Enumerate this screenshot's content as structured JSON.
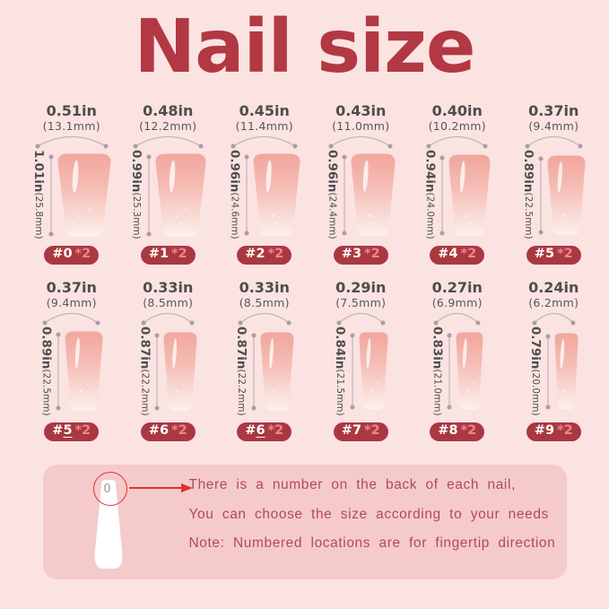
{
  "title": "Nail size",
  "colors": {
    "page_background": "#fbe3e2",
    "title_red": "#b23843",
    "badge_background": "#a93841",
    "badge_qty_pink": "#ee858c",
    "measure_text_gray": "#4d4d4d",
    "note_panel_background": "#f5caca",
    "note_text_rose": "#b04b57",
    "arrow_red": "#e03131",
    "nail_pink_top": "#f1a69d"
  },
  "sizes": [
    {
      "num_prefix": "#",
      "digit": "0",
      "underlined": false,
      "qty": "*2",
      "width_in": "0.51in",
      "width_mm": "(13.1mm)",
      "height_in": "1.01in",
      "height_mm": "(25.8mm)"
    },
    {
      "num_prefix": "#",
      "digit": "1",
      "underlined": false,
      "qty": "*2",
      "width_in": "0.48in",
      "width_mm": "(12.2mm)",
      "height_in": "0.99in",
      "height_mm": "(25.3mm)"
    },
    {
      "num_prefix": "#",
      "digit": "2",
      "underlined": false,
      "qty": "*2",
      "width_in": "0.45in",
      "width_mm": "(11.4mm)",
      "height_in": "0.96in",
      "height_mm": "(24.6mm)"
    },
    {
      "num_prefix": "#",
      "digit": "3",
      "underlined": false,
      "qty": "*2",
      "width_in": "0.43in",
      "width_mm": "(11.0mm)",
      "height_in": "0.96in",
      "height_mm": "(24.4mm)"
    },
    {
      "num_prefix": "#",
      "digit": "4",
      "underlined": false,
      "qty": "*2",
      "width_in": "0.40in",
      "width_mm": "(10.2mm)",
      "height_in": "0.94in",
      "height_mm": "(24.0mm)"
    },
    {
      "num_prefix": "#",
      "digit": "5",
      "underlined": false,
      "qty": "*2",
      "width_in": "0.37in",
      "width_mm": "(9.4mm)",
      "height_in": "0.89in",
      "height_mm": "(22.5mm)"
    },
    {
      "num_prefix": "#",
      "digit": "5",
      "underlined": true,
      "qty": "*2",
      "width_in": "0.37in",
      "width_mm": "(9.4mm)",
      "height_in": "0.89in",
      "height_mm": "(22.5mm)"
    },
    {
      "num_prefix": "#",
      "digit": "6",
      "underlined": false,
      "qty": "*2",
      "width_in": "0.33in",
      "width_mm": "(8.5mm)",
      "height_in": "0.87in",
      "height_mm": "(22.2mm)"
    },
    {
      "num_prefix": "#",
      "digit": "6",
      "underlined": true,
      "qty": "*2",
      "width_in": "0.33in",
      "width_mm": "(8.5mm)",
      "height_in": "0.87in",
      "height_mm": "(22.2mm)"
    },
    {
      "num_prefix": "#",
      "digit": "7",
      "underlined": false,
      "qty": "*2",
      "width_in": "0.29in",
      "width_mm": "(7.5mm)",
      "height_in": "0.84in",
      "height_mm": "(21.5mm)"
    },
    {
      "num_prefix": "#",
      "digit": "8",
      "underlined": false,
      "qty": "*2",
      "width_in": "0.27in",
      "width_mm": "(6.9mm)",
      "height_in": "0.83in",
      "height_mm": "(21.0mm)"
    },
    {
      "num_prefix": "#",
      "digit": "9",
      "underlined": false,
      "qty": "*2",
      "width_in": "0.24in",
      "width_mm": "(6.2mm)",
      "height_in": "0.79in",
      "height_mm": "(20.0mm)"
    }
  ],
  "note": {
    "nail_number": "0",
    "lines": [
      "There is a number on the back of each nail,",
      "You can choose the size according to your needs",
      "Note: Numbered locations are for fingertip direction"
    ]
  }
}
